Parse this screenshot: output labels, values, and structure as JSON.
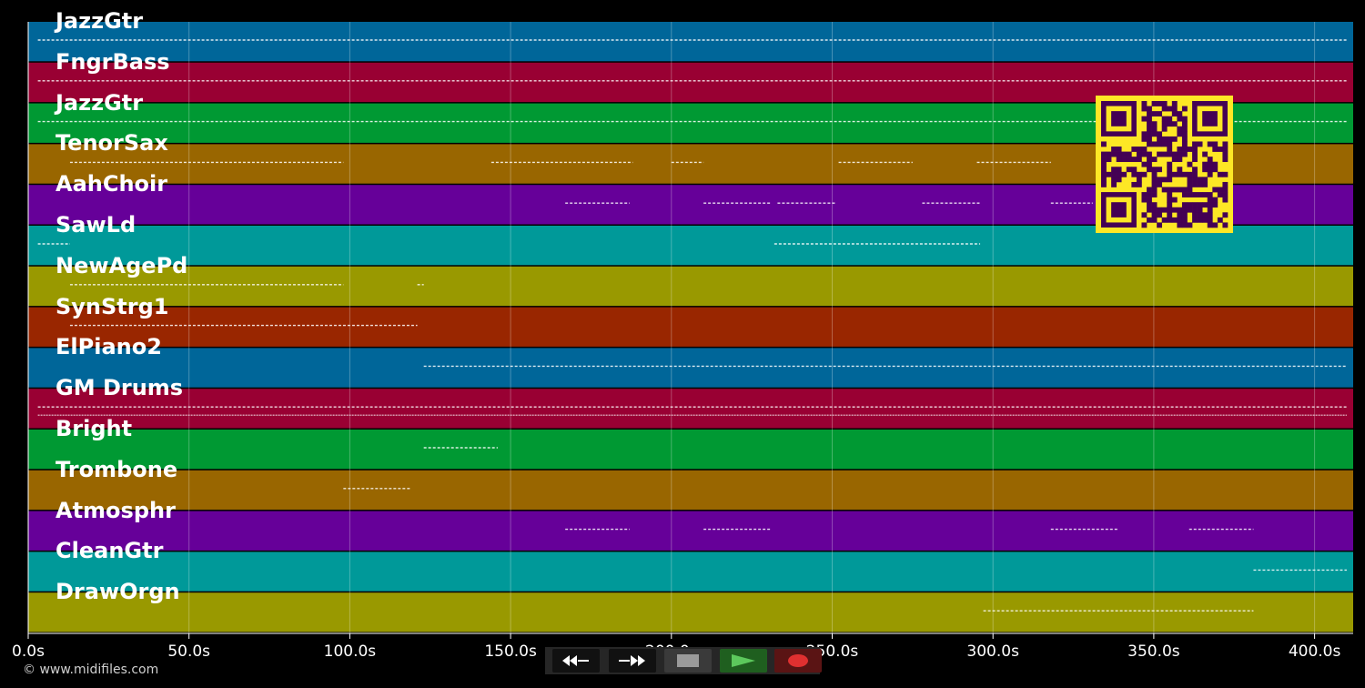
{
  "timeline": {
    "x_ticks": [
      "0.0s",
      "50.0s",
      "100.0s",
      "150.0s",
      "200.0s",
      "250.0s",
      "300.0s",
      "350.0s",
      "400.0s"
    ],
    "x_tick_values": [
      0,
      50,
      100,
      150,
      200,
      250,
      300,
      350,
      400
    ],
    "x_range": [
      0,
      412
    ]
  },
  "tracks": [
    {
      "label": "JazzGtr",
      "color": "#006699"
    },
    {
      "label": "FngrBass",
      "color": "#990033"
    },
    {
      "label": "JazzGtr",
      "color": "#009933"
    },
    {
      "label": "TenorSax",
      "color": "#996600"
    },
    {
      "label": "AahChoir",
      "color": "#660099"
    },
    {
      "label": "SawLd",
      "color": "#009999"
    },
    {
      "label": "NewAgePd",
      "color": "#999900"
    },
    {
      "label": "SynStrg1",
      "color": "#992600"
    },
    {
      "label": "ElPiano2",
      "color": "#006699"
    },
    {
      "label": "GM Drums",
      "color": "#990033"
    },
    {
      "label": "Bright",
      "color": "#009933"
    },
    {
      "label": "Trombone",
      "color": "#996600"
    },
    {
      "label": "Atmosphr",
      "color": "#660099"
    },
    {
      "label": "CleanGtr",
      "color": "#009999"
    },
    {
      "label": "DrawOrgn",
      "color": "#999900"
    }
  ],
  "footer": {
    "copyright": "© www.midifiles.com"
  },
  "controls": {
    "rewind": "rewind-icon",
    "fast_forward": "fast-forward-icon",
    "stop": "stop-icon",
    "play": "play-icon",
    "record": "record-icon"
  },
  "colors": {
    "background": "#000000",
    "qr_foreground": "#440154",
    "qr_background": "#fde725",
    "play_button": "#1f5f1f",
    "record_button": "#5a1414"
  }
}
